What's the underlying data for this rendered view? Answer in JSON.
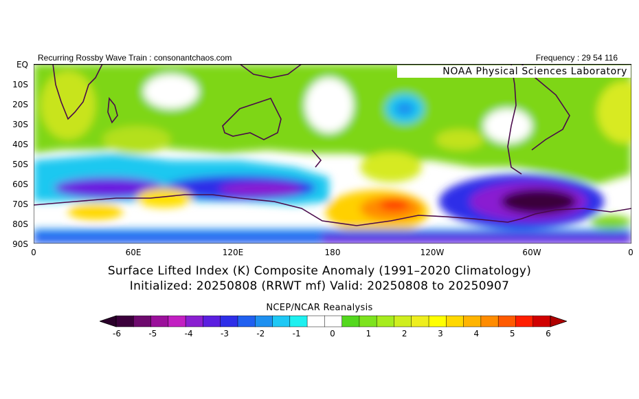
{
  "header": {
    "left_text": "Recurring Rossby Wave Train : consonantchaos.com",
    "right_text": "Frequency : 29 54 116"
  },
  "map": {
    "credit": "NOAA Physical Sciences Laboratory",
    "lat_labels": [
      "EQ",
      "10S",
      "20S",
      "30S",
      "40S",
      "50S",
      "60S",
      "70S",
      "80S",
      "90S"
    ],
    "lon_labels": [
      "0",
      "60E",
      "120E",
      "180",
      "120W",
      "60W",
      "0"
    ],
    "coastline_color": "#4a0a4a",
    "anomalies": [
      {
        "label": "green band",
        "color": "#54c40f"
      },
      {
        "label": "deep purple high southern ocean",
        "color": "#3a0038"
      }
    ]
  },
  "titles": {
    "line1": "Surface Lifted Index (K) Composite Anomaly (1991–2020 Climatology)",
    "line2": "Initialized: 20250808 (RRWT mf) Valid: 20250808 to 20250907",
    "source": "NCEP/NCAR Reanalysis"
  },
  "colorbar": {
    "ticks": [
      "-6",
      "-5",
      "-4",
      "-3",
      "-2",
      "-1",
      "0",
      "1",
      "2",
      "3",
      "4",
      "5",
      "6"
    ],
    "colors": [
      "#3b003b",
      "#6d0a6d",
      "#9b109b",
      "#c21fc2",
      "#8a1fd1",
      "#5b1fe0",
      "#2e2ee8",
      "#2060f0",
      "#1e90f0",
      "#1ec8f5",
      "#1ef0f0",
      "#ffffff",
      "#ffffff",
      "#54d81e",
      "#7de31e",
      "#a6ec1e",
      "#cfee1e",
      "#eeee1e",
      "#ffff00",
      "#ffd800",
      "#ffb400",
      "#ff8c00",
      "#ff5a00",
      "#ff1e00",
      "#d00000"
    ],
    "left_arrow_color": "#2a002a",
    "right_arrow_color": "#b00000"
  }
}
